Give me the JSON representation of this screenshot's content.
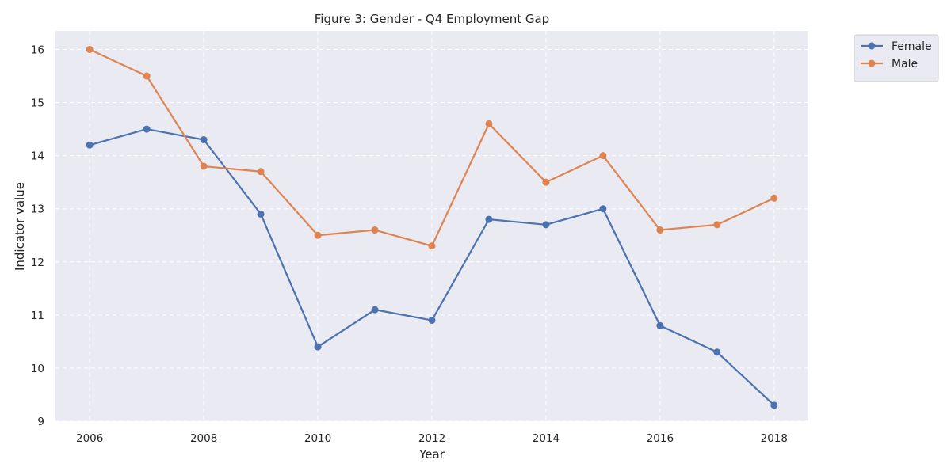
{
  "chart_data": {
    "type": "line",
    "title": "Figure 3: Gender - Q4 Employment Gap",
    "xlabel": "Year",
    "ylabel": "Indicator value",
    "x": [
      2006,
      2007,
      2008,
      2009,
      2010,
      2011,
      2012,
      2013,
      2014,
      2015,
      2016,
      2017,
      2018
    ],
    "series": [
      {
        "name": "Female",
        "color": "#4c72b0",
        "values": [
          14.2,
          14.5,
          14.3,
          12.9,
          10.4,
          11.1,
          10.9,
          12.8,
          12.7,
          13.0,
          10.8,
          10.3,
          9.3
        ]
      },
      {
        "name": "Male",
        "color": "#dd8452",
        "values": [
          16.0,
          15.5,
          13.8,
          13.7,
          12.5,
          12.6,
          12.3,
          14.6,
          13.5,
          14.0,
          12.6,
          12.7,
          13.2
        ]
      }
    ],
    "xlim": [
      2005.4,
      2018.6
    ],
    "ylim": [
      9.0,
      16.35
    ],
    "xticks": [
      "2006",
      "2008",
      "2010",
      "2012",
      "2014",
      "2016",
      "2018"
    ],
    "yticks": [
      "9",
      "10",
      "11",
      "12",
      "13",
      "14",
      "15",
      "16"
    ],
    "grid": true,
    "legend_position": "outside-top-right",
    "background_color": "#eaeaf2"
  }
}
